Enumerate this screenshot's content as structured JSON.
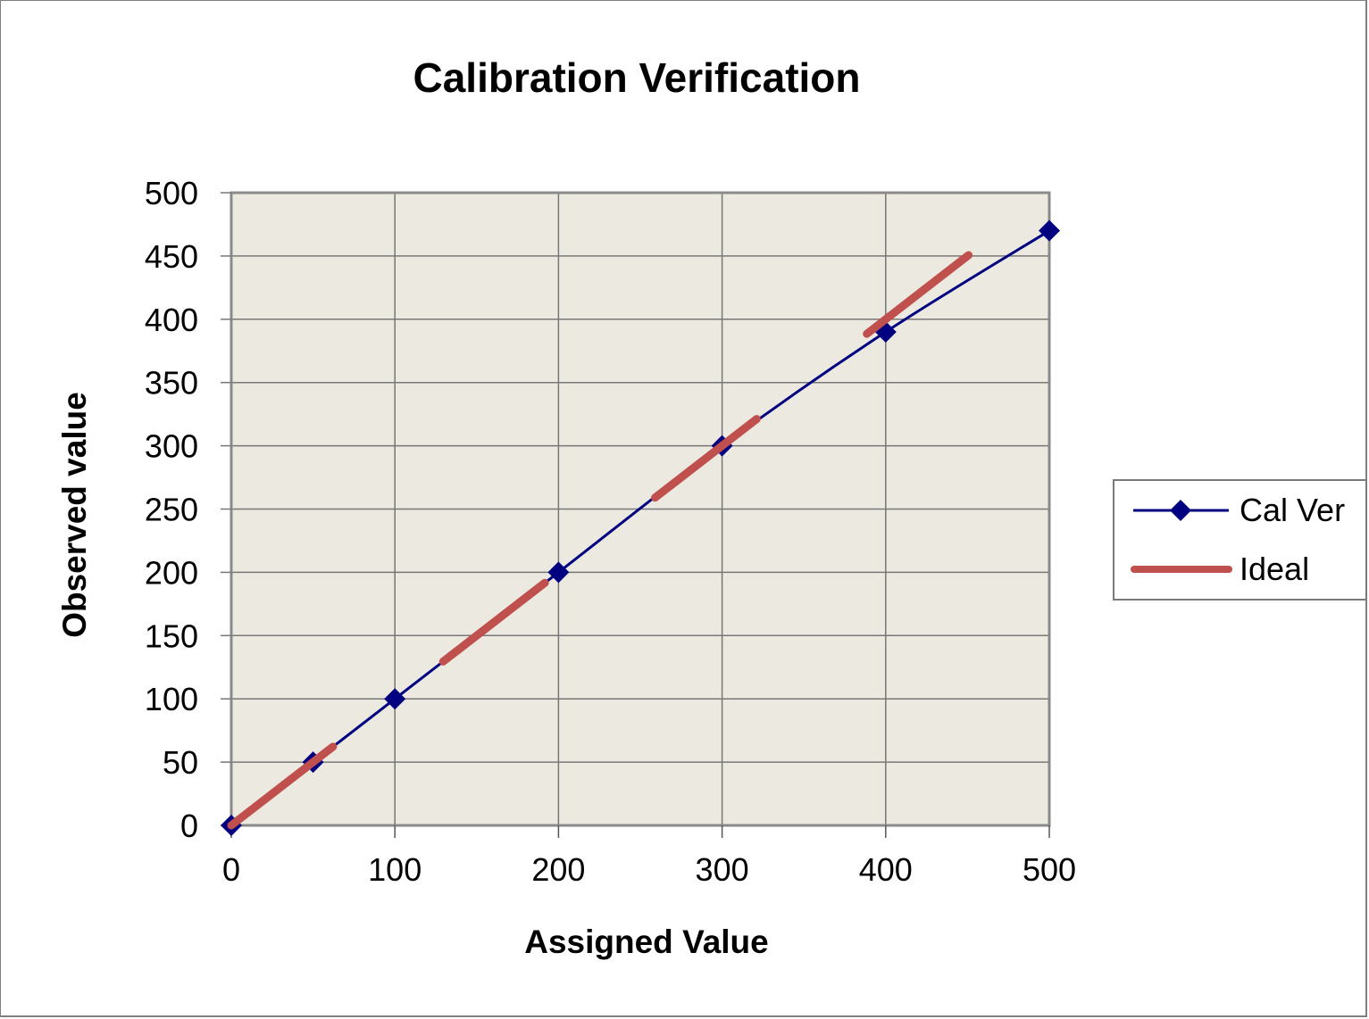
{
  "chart_data": {
    "type": "line",
    "title": "Calibration Verification",
    "xlabel": "Assigned Value",
    "ylabel": "Observed value",
    "xlim": [
      0,
      500
    ],
    "ylim": [
      0,
      500
    ],
    "x_ticks": [
      0,
      100,
      200,
      300,
      400,
      500
    ],
    "y_ticks": [
      0,
      50,
      100,
      150,
      200,
      250,
      300,
      350,
      400,
      450,
      500
    ],
    "grid": true,
    "legend_position": "right",
    "plot_background": "#ECE9E0",
    "series": [
      {
        "name": "Cal Ver",
        "color": "#000080",
        "marker": "diamond",
        "line_style": "solid",
        "smoothed": true,
        "points": [
          [
            0,
            0
          ],
          [
            50,
            50
          ],
          [
            100,
            100
          ],
          [
            200,
            200
          ],
          [
            300,
            300
          ],
          [
            400,
            390
          ],
          [
            500,
            470
          ]
        ]
      },
      {
        "name": "Ideal",
        "color": "#C0504D",
        "marker": "none",
        "line_style": "dashed",
        "points": [
          [
            0,
            0
          ],
          [
            500,
            500
          ]
        ]
      }
    ]
  },
  "legend": {
    "items": [
      {
        "label": "Cal Ver"
      },
      {
        "label": "Ideal"
      }
    ]
  }
}
